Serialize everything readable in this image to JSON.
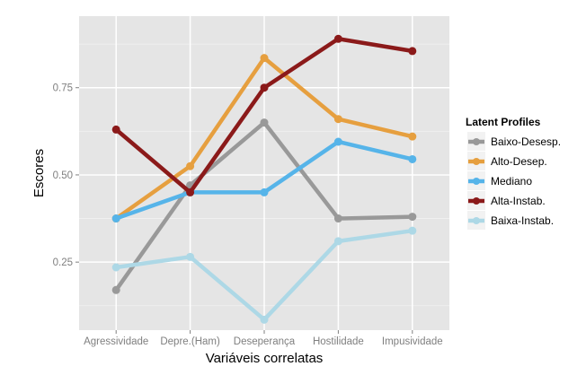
{
  "chart_data": {
    "type": "line",
    "title": "",
    "xlabel": "Variáveis correlatas",
    "ylabel": "Escores",
    "categories": [
      "Agressividade",
      "Depre.(Ham)",
      "Deseperança",
      "Hostilidade",
      "Impusividade"
    ],
    "y_ticks": [
      0.25,
      0.5,
      0.75
    ],
    "y_tick_labels": [
      "0.25",
      "0.50",
      "0.75"
    ],
    "ylim": [
      0.055,
      0.955
    ],
    "grid": true,
    "legend": {
      "title": "Latent Profiles",
      "placement": "right"
    },
    "series": [
      {
        "name": "Baixo-Desesp.",
        "color": "#999999",
        "values": [
          0.17,
          0.47,
          0.65,
          0.375,
          0.38
        ]
      },
      {
        "name": "Alto-Desep.",
        "color": "#E69F3F",
        "values": [
          0.375,
          0.525,
          0.835,
          0.66,
          0.61
        ]
      },
      {
        "name": "Mediano",
        "color": "#56B4E9",
        "values": [
          0.375,
          0.45,
          0.45,
          0.595,
          0.545
        ]
      },
      {
        "name": "Alta-Instab.",
        "color": "#8B1A1A",
        "values": [
          0.63,
          0.45,
          0.75,
          0.89,
          0.855
        ]
      },
      {
        "name": "Baixa-Instab.",
        "color": "#ADD8E6",
        "values": [
          0.235,
          0.265,
          0.085,
          0.31,
          0.34
        ]
      }
    ]
  }
}
